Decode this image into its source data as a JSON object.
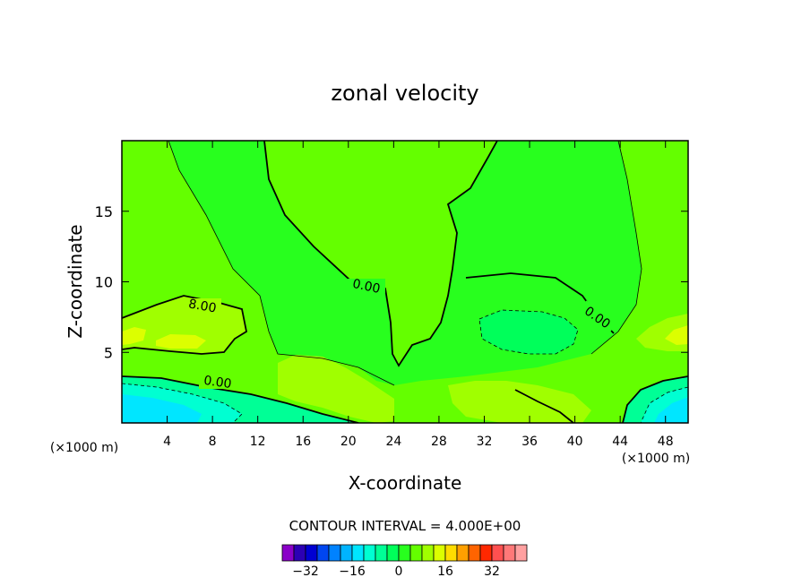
{
  "chart_data": {
    "type": "contour",
    "title": "zonal velocity",
    "xlabel": "X-coordinate",
    "ylabel": "Z-coordinate",
    "x_unit_label": "(×1000 m)",
    "xlim": [
      0,
      50
    ],
    "ylim": [
      0,
      20
    ],
    "x_ticks": [
      "4",
      "8",
      "12",
      "16",
      "20",
      "24",
      "28",
      "32",
      "36",
      "40",
      "44",
      "48"
    ],
    "y_ticks": [
      "5",
      "10",
      "15"
    ],
    "contour_labels": [
      "0.00",
      "0.00",
      "0.00",
      "8.00"
    ],
    "contour_interval_text": "CONTOUR INTERVAL = 4.000E+00",
    "colorbar": {
      "colors": [
        "#8a00c8",
        "#2c00b4",
        "#0000d2",
        "#0046f0",
        "#0082ff",
        "#00b4ff",
        "#00e6ff",
        "#00ffd2",
        "#00ff96",
        "#00ff5a",
        "#28ff1e",
        "#64ff00",
        "#a0ff00",
        "#dcff00",
        "#ffdc00",
        "#ffa000",
        "#ff6400",
        "#ff2800",
        "#ff5050",
        "#ff7878",
        "#ffa0a0"
      ],
      "tick_labels": [
        "−32",
        "−16",
        "0",
        "16",
        "32"
      ],
      "tick_values": [
        -32,
        -16,
        0,
        16,
        32
      ],
      "range": [
        -40,
        44
      ]
    },
    "grid": false,
    "legend": "colorbar-bottom"
  }
}
